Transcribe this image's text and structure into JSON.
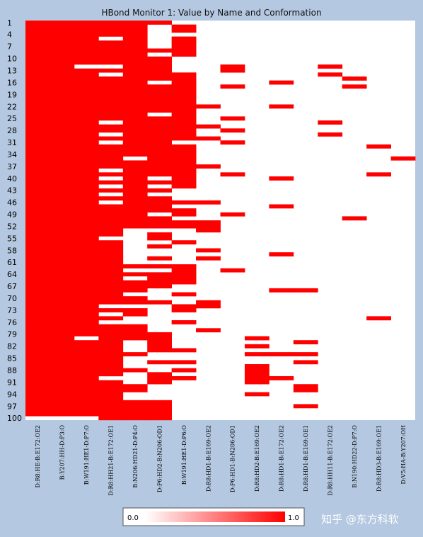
{
  "chart_data": {
    "type": "heatmap",
    "title": "HBond Monitor 1: Value by Name and Conformation",
    "conformations": 100,
    "ytick_labels": [
      "1",
      "4",
      "7",
      "10",
      "13",
      "16",
      "19",
      "22",
      "25",
      "28",
      "31",
      "34",
      "37",
      "40",
      "43",
      "46",
      "49",
      "52",
      "55",
      "58",
      "61",
      "64",
      "67",
      "70",
      "73",
      "76",
      "79",
      "82",
      "85",
      "88",
      "91",
      "94",
      "97",
      "100"
    ],
    "ytick_values": [
      1,
      4,
      7,
      10,
      13,
      16,
      19,
      22,
      25,
      28,
      31,
      34,
      37,
      40,
      43,
      46,
      49,
      52,
      55,
      58,
      61,
      64,
      67,
      70,
      73,
      76,
      79,
      82,
      85,
      88,
      91,
      94,
      97,
      100
    ],
    "columns": [
      "D:R8:HE-B:E172:OE2",
      "B:Y207:HH-D:P3:O",
      "B:W191:HE1-D:P7:O",
      "D:R8:HH21-B:E172:OE1",
      "B:N206:HD21-D:P4:O",
      "D:P6:HD2-B:N206:OD1",
      "B:W191:HE1-D:P6:O",
      "D:R8:HD1-B:E169:OE2",
      "D:P6:HD1-B:N206:OD1",
      "D:R8:HD2-B:E169:OE2",
      "D:R8:HD1-B:E172:OE2",
      "D:R8:HD1-B:E169:OE1",
      "D:R8:HH11-B:E172:OE2",
      "B:N190:HD22-D:P7:O",
      "D:R8:HD3-B:E169:OE1",
      "D:V5:HA-B:Y207:OH"
    ],
    "value_range": [
      0.0,
      1.0
    ],
    "colors": {
      "high": "#ff0000",
      "low": "#ffffff",
      "background": "#b4c8e1"
    },
    "columns_data": [
      {
        "ranges": [
          [
            1,
            99
          ]
        ]
      },
      {
        "ranges": [
          [
            1,
            99
          ]
        ]
      },
      {
        "ranges": [
          [
            1,
            11
          ],
          [
            13,
            79
          ],
          [
            81,
            99
          ]
        ]
      },
      {
        "ranges": [
          [
            1,
            4
          ],
          [
            6,
            11
          ],
          [
            13,
            13
          ],
          [
            15,
            25
          ],
          [
            27,
            28
          ],
          [
            30,
            30
          ],
          [
            32,
            37
          ],
          [
            39,
            39
          ],
          [
            41,
            41
          ],
          [
            43,
            43
          ],
          [
            45,
            45
          ],
          [
            47,
            54
          ],
          [
            56,
            71
          ],
          [
            73,
            73
          ],
          [
            75,
            75
          ],
          [
            77,
            89
          ],
          [
            91,
            100
          ]
        ]
      },
      {
        "ranges": [
          [
            1,
            34
          ],
          [
            36,
            52
          ],
          [
            62,
            62
          ],
          [
            64,
            64
          ],
          [
            66,
            68
          ],
          [
            70,
            71
          ],
          [
            73,
            74
          ],
          [
            77,
            80
          ],
          [
            84,
            84
          ],
          [
            88,
            88
          ],
          [
            92,
            93
          ],
          [
            96,
            100
          ]
        ]
      },
      {
        "ranges": [
          [
            1,
            1
          ],
          [
            8,
            8
          ],
          [
            10,
            15
          ],
          [
            17,
            23
          ],
          [
            25,
            39
          ],
          [
            41,
            41
          ],
          [
            43,
            43
          ],
          [
            45,
            48
          ],
          [
            50,
            52
          ],
          [
            54,
            55
          ],
          [
            57,
            57
          ],
          [
            60,
            60
          ],
          [
            62,
            62
          ],
          [
            64,
            67
          ],
          [
            71,
            71
          ],
          [
            79,
            83
          ],
          [
            86,
            86
          ],
          [
            89,
            91
          ],
          [
            96,
            100
          ]
        ]
      },
      {
        "ranges": [
          [
            2,
            3
          ],
          [
            5,
            9
          ],
          [
            14,
            21
          ],
          [
            22,
            30
          ],
          [
            32,
            42
          ],
          [
            46,
            46
          ],
          [
            48,
            49
          ],
          [
            51,
            52
          ],
          [
            56,
            56
          ],
          [
            62,
            66
          ],
          [
            69,
            69
          ],
          [
            72,
            73
          ],
          [
            76,
            76
          ],
          [
            83,
            83
          ],
          [
            86,
            86
          ],
          [
            88,
            88
          ],
          [
            90,
            90
          ]
        ]
      },
      {
        "ranges": [
          [
            22,
            22
          ],
          [
            27,
            27
          ],
          [
            30,
            30
          ],
          [
            37,
            37
          ],
          [
            46,
            46
          ],
          [
            51,
            53
          ],
          [
            58,
            58
          ],
          [
            60,
            60
          ],
          [
            71,
            72
          ],
          [
            78,
            78
          ]
        ]
      },
      {
        "ranges": [
          [
            12,
            13
          ],
          [
            17,
            17
          ],
          [
            25,
            25
          ],
          [
            28,
            28
          ],
          [
            31,
            31
          ],
          [
            39,
            39
          ],
          [
            49,
            49
          ],
          [
            63,
            63
          ]
        ]
      },
      {
        "ranges": [
          [
            80,
            80
          ],
          [
            82,
            82
          ],
          [
            84,
            84
          ],
          [
            87,
            91
          ],
          [
            94,
            94
          ]
        ]
      },
      {
        "ranges": [
          [
            16,
            16
          ],
          [
            22,
            22
          ],
          [
            40,
            40
          ],
          [
            47,
            47
          ],
          [
            59,
            59
          ],
          [
            68,
            68
          ],
          [
            84,
            84
          ],
          [
            90,
            90
          ]
        ]
      },
      {
        "ranges": [
          [
            68,
            68
          ],
          [
            81,
            81
          ],
          [
            84,
            84
          ],
          [
            86,
            86
          ],
          [
            92,
            93
          ],
          [
            97,
            97
          ]
        ]
      },
      {
        "ranges": [
          [
            12,
            12
          ],
          [
            14,
            14
          ],
          [
            26,
            26
          ],
          [
            29,
            29
          ]
        ]
      },
      {
        "ranges": [
          [
            15,
            15
          ],
          [
            17,
            17
          ],
          [
            50,
            50
          ]
        ]
      },
      {
        "ranges": [
          [
            32,
            32
          ],
          [
            39,
            39
          ],
          [
            75,
            75
          ]
        ]
      },
      {
        "ranges": [
          [
            35,
            35
          ]
        ]
      }
    ]
  },
  "legend": {
    "min_label": "0.0",
    "max_label": "1.0"
  },
  "watermark": "知乎 @东方科软"
}
